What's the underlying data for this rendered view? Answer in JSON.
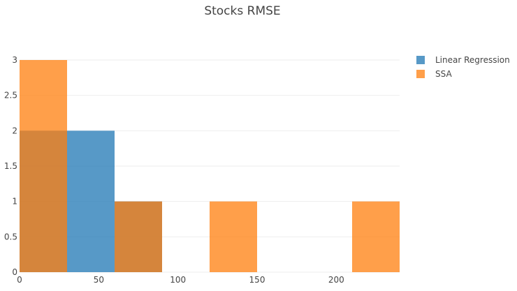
{
  "chart_data": {
    "type": "bar",
    "title": "Stocks RMSE",
    "xlabel": "",
    "ylabel": "",
    "barmode": "overlay",
    "bin_edges": [
      0,
      30,
      60,
      90,
      120,
      150,
      180,
      210,
      240
    ],
    "xlim": [
      0,
      240
    ],
    "ylim": [
      0,
      3
    ],
    "x_ticks": [
      "0",
      "50",
      "100",
      "150",
      "200"
    ],
    "y_ticks": [
      "0",
      "0.5",
      "1",
      "1.5",
      "2",
      "2.5",
      "3"
    ],
    "grid": true,
    "legend_position": "top-right",
    "series": [
      {
        "name": "Linear Regression",
        "color": "#1f77b4",
        "counts": [
          2,
          2,
          1,
          0,
          0,
          0,
          0,
          0
        ]
      },
      {
        "name": "SSA",
        "color": "#ff7f0e",
        "counts": [
          3,
          0,
          1,
          0,
          1,
          0,
          0,
          1
        ]
      }
    ]
  }
}
